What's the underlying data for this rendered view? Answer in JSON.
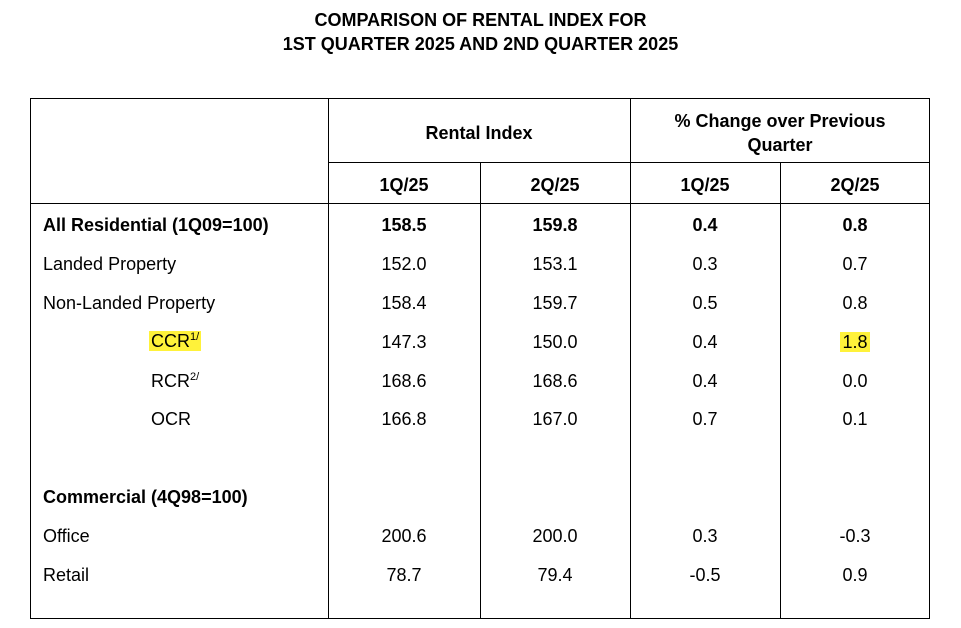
{
  "title": {
    "line1": "COMPARISON OF RENTAL INDEX FOR",
    "line2": "1ST QUARTER 2025 AND 2ND QUARTER 2025"
  },
  "header": {
    "rental_index": "Rental Index",
    "pct_change": "% Change over Previous Quarter",
    "cols": [
      "1Q/25",
      "2Q/25",
      "1Q/25",
      "2Q/25"
    ]
  },
  "rows": [
    {
      "label": "All Residential (1Q09=100)",
      "values": [
        "158.5",
        "159.8",
        "0.4",
        "0.8"
      ]
    },
    {
      "label": "Landed Property",
      "values": [
        "152.0",
        "153.1",
        "0.3",
        "0.7"
      ]
    },
    {
      "label": "Non-Landed Property",
      "values": [
        "158.4",
        "159.7",
        "0.5",
        "0.8"
      ]
    },
    {
      "label": "CCR",
      "sup": "1/",
      "values": [
        "147.3",
        "150.0",
        "0.4",
        "1.8"
      ]
    },
    {
      "label": "RCR",
      "sup": "2/",
      "values": [
        "168.6",
        "168.6",
        "0.4",
        "0.0"
      ]
    },
    {
      "label": "OCR",
      "values": [
        "166.8",
        "167.0",
        "0.7",
        "0.1"
      ]
    },
    {
      "label": "Commercial (4Q98=100)",
      "values": [
        "",
        "",
        "",
        ""
      ]
    },
    {
      "label": "Office",
      "values": [
        "200.6",
        "200.0",
        "0.3",
        "-0.3"
      ]
    },
    {
      "label": "Retail",
      "values": [
        "78.7",
        "79.4",
        "-0.5",
        "0.9"
      ]
    }
  ],
  "highlight_color": "#fff23a"
}
